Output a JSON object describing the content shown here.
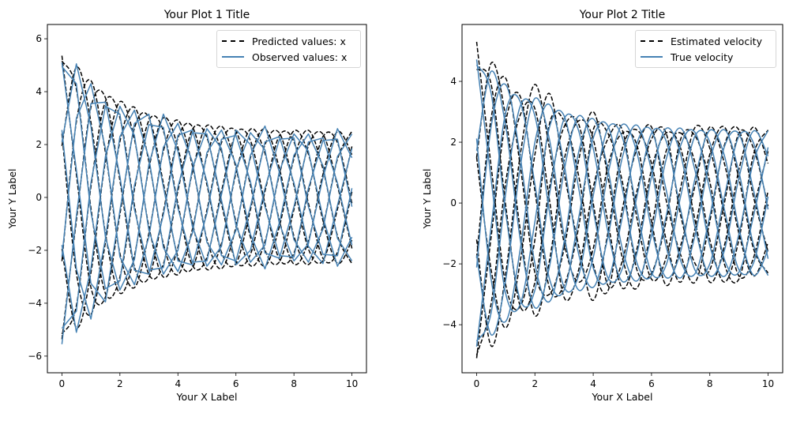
{
  "chart_data": [
    {
      "type": "line",
      "title": "Your Plot 1 Title",
      "xlabel": "Your X Label",
      "ylabel": "Your Y Label",
      "xlim": [
        -0.5,
        10.5
      ],
      "ylim": [
        -6.63,
        6.54
      ],
      "xticks": [
        0,
        2,
        4,
        6,
        8,
        10
      ],
      "yticks": [
        -6,
        -4,
        -2,
        0,
        2,
        4,
        6
      ],
      "grid": false,
      "legend": {
        "placement": "top-right",
        "entries": [
          "Predicted values: x",
          "Observed values: x"
        ]
      },
      "x": [
        0,
        0.5,
        1,
        1.5,
        2,
        2.5,
        3,
        3.5,
        4,
        4.5,
        5,
        5.5,
        6,
        6.5,
        7,
        7.5,
        8,
        8.5,
        9,
        9.5,
        10
      ],
      "series": [
        {
          "name": "Predicted values: x",
          "style": "dashed",
          "color": "#000000",
          "trajectories": [
            [
              5.36,
              0.87,
              -3.4,
              -3.77,
              -0.64,
              2.62,
              3.02,
              0.53,
              -2.24,
              -2.67,
              -0.48,
              2.07,
              2.5,
              0.46,
              -1.99,
              -2.43,
              -0.45,
              1.95,
              2.39,
              0.44,
              -1.93
            ],
            [
              2.41,
              -2.86,
              -4.42,
              -1.7,
              2.11,
              3.41,
              1.36,
              -1.76,
              -2.92,
              -1.2,
              1.58,
              2.69,
              1.13,
              -1.5,
              -2.59,
              -1.09,
              1.47,
              2.54,
              1.07,
              -1.45,
              -2.51
            ],
            [
              -1.95,
              -4.92,
              -2.85,
              1.37,
              3.62,
              2.2,
              -1.1,
              -3.01,
              -1.88,
              0.97,
              2.72,
              1.74,
              -0.91,
              -2.58,
              -1.67,
              0.88,
              2.52,
              1.64,
              -0.87,
              -2.49,
              -1.62
            ],
            [
              -5.16,
              -4.09,
              0.39,
              3.63,
              3.01,
              -0.3,
              -2.91,
              -2.51,
              0.25,
              2.57,
              2.26,
              -0.23,
              -2.41,
              -2.15,
              0.23,
              2.34,
              2.1,
              -0.22,
              -2.3,
              -2.07,
              0.22
            ],
            [
              -5.36,
              -0.87,
              3.4,
              3.77,
              0.64,
              -2.62,
              -3.02,
              -0.53,
              2.24,
              2.67,
              0.48,
              -2.07,
              -2.5,
              -0.46,
              1.99,
              2.43,
              0.45,
              -1.95,
              -2.39,
              -0.44,
              1.93
            ],
            [
              -2.41,
              2.86,
              4.42,
              1.7,
              -2.11,
              -3.41,
              -1.36,
              1.76,
              2.92,
              1.2,
              -1.58,
              -2.69,
              -1.13,
              1.5,
              2.59,
              1.09,
              -1.47,
              -2.54,
              -1.07,
              1.45,
              2.51
            ],
            [
              1.95,
              4.92,
              2.85,
              -1.37,
              -3.62,
              -2.2,
              1.1,
              3.01,
              1.88,
              -0.97,
              -2.72,
              -1.74,
              0.91,
              2.58,
              1.67,
              -0.88,
              -2.52,
              -1.64,
              0.87,
              2.49,
              1.62
            ],
            [
              5.16,
              4.09,
              -0.39,
              -3.63,
              -3.01,
              0.3,
              2.91,
              2.51,
              -0.25,
              -2.57,
              -2.26,
              0.23,
              2.41,
              2.15,
              -0.23,
              -2.34,
              -2.1,
              0.22,
              2.3,
              2.07,
              -0.22
            ]
          ]
        },
        {
          "name": "Observed values: x",
          "style": "solid",
          "color": "#4682b4",
          "trajectories": [
            [
              5.1,
              1.05,
              -3.25,
              -3.95,
              -0.5,
              2.8,
              3.15,
              0.4,
              -2.4,
              -2.55,
              -0.6,
              2.2,
              2.35,
              0.6,
              -2.1,
              -2.3,
              -0.35,
              2.1,
              2.25,
              0.55,
              -1.8
            ],
            [
              2.55,
              -2.7,
              -4.6,
              -1.55,
              2.3,
              3.3,
              1.5,
              -1.9,
              -2.8,
              -1.35,
              1.7,
              2.55,
              1.25,
              -1.4,
              -2.7,
              -0.95,
              1.6,
              2.4,
              1.2,
              -1.55,
              -2.4
            ],
            [
              -1.8,
              -5.1,
              -2.7,
              1.55,
              3.45,
              2.35,
              -1.25,
              -2.9,
              -2.0,
              1.1,
              2.6,
              1.85,
              -1.05,
              -2.45,
              -1.8,
              1.0,
              2.4,
              1.75,
              -0.75,
              -2.6,
              -1.5
            ],
            [
              -4.95,
              -4.3,
              0.55,
              3.45,
              3.15,
              -0.45,
              -2.75,
              -2.65,
              0.4,
              2.45,
              2.4,
              -0.1,
              -2.55,
              -2.0,
              0.35,
              2.2,
              2.25,
              -0.35,
              -2.15,
              -2.2,
              0.35
            ],
            [
              -5.55,
              -0.7,
              3.55,
              3.6,
              0.8,
              -2.75,
              -2.9,
              -0.65,
              2.35,
              2.55,
              0.6,
              -2.2,
              -2.4,
              -0.35,
              2.1,
              2.3,
              0.55,
              -1.85,
              -2.5,
              -0.3,
              1.85
            ],
            [
              -2.25,
              3.0,
              4.3,
              1.85,
              -2.25,
              -3.3,
              -1.5,
              1.9,
              2.8,
              1.35,
              -1.7,
              -2.55,
              -1.25,
              1.6,
              2.7,
              0.95,
              -1.6,
              -2.45,
              -1.2,
              1.55,
              2.4
            ],
            [
              2.1,
              5.05,
              2.7,
              -1.5,
              -3.5,
              -2.35,
              1.25,
              3.15,
              1.75,
              -1.1,
              -2.6,
              -1.85,
              1.05,
              2.45,
              1.8,
              -1.0,
              -2.4,
              -1.75,
              0.75,
              2.6,
              1.5
            ],
            [
              4.95,
              4.3,
              -0.55,
              -3.45,
              -3.15,
              0.45,
              2.75,
              2.65,
              -0.4,
              -2.45,
              -2.4,
              0.1,
              2.55,
              2.0,
              -0.35,
              -2.2,
              -2.25,
              0.35,
              2.15,
              2.2,
              -0.35
            ]
          ]
        }
      ]
    },
    {
      "type": "line",
      "title": "Your Plot 2 Title",
      "xlabel": "Your X Label",
      "ylabel": "Your Y Label",
      "xlim": [
        -0.5,
        10.5
      ],
      "ylim": [
        -5.58,
        5.87
      ],
      "xticks": [
        0,
        2,
        4,
        6,
        8,
        10
      ],
      "yticks": [
        -4,
        -2,
        0,
        2,
        4
      ],
      "grid": false,
      "legend": {
        "placement": "top-right",
        "entries": [
          "Estimated velocity",
          "True velocity"
        ]
      },
      "x": [
        0,
        0.5,
        1,
        1.5,
        2,
        2.5,
        3,
        3.5,
        4,
        4.5,
        5,
        5.5,
        6,
        6.5,
        7,
        7.5,
        8,
        8.5,
        9,
        9.5,
        10
      ],
      "series": [
        {
          "name": "Estimated velocity",
          "style": "dashed",
          "color": "#000000",
          "trajectories": [
            [
              5.3,
              1.2,
              -2.7,
              -3.4,
              -1.2,
              2.6,
              2.7,
              0.9,
              -2.0,
              -2.9,
              -0.2,
              1.8,
              2.5,
              0.1,
              -1.7,
              -2.6,
              -0.6,
              1.9,
              2.4,
              0.2,
              -1.6
            ],
            [
              1.5,
              -2.2,
              -4.1,
              -1.9,
              1.6,
              3.6,
              1.0,
              -1.4,
              -3.2,
              -1.0,
              1.8,
              2.4,
              1.3,
              -1.2,
              -2.6,
              -0.8,
              1.6,
              2.5,
              0.8,
              -1.5,
              -2.3
            ],
            [
              -1.2,
              -4.7,
              -2.3,
              1.6,
              3.9,
              1.8,
              -1.3,
              -2.6,
              -1.5,
              1.2,
              2.3,
              1.9,
              -0.6,
              -2.7,
              -1.4,
              0.6,
              2.5,
              1.3,
              -1.0,
              -2.4,
              -1.3
            ],
            [
              -5.0,
              -3.3,
              0.7,
              2.9,
              3.1,
              0.1,
              -3.1,
              -2.2,
              0.5,
              2.1,
              2.4,
              -0.5,
              -2.5,
              -1.8,
              0.5,
              2.5,
              1.8,
              -0.4,
              -2.4,
              -1.8,
              0.4
            ],
            [
              -5.1,
              -1.1,
              2.7,
              3.5,
              0.4,
              -2.8,
              -2.7,
              -0.8,
              2.4,
              2.3,
              0.7,
              -2.2,
              -2.3,
              -0.6,
              2.1,
              2.2,
              0.7,
              -2.0,
              -2.5,
              -0.2,
              1.7
            ],
            [
              -1.8,
              2.8,
              4.1,
              1.2,
              -2.3,
              -3.0,
              -1.5,
              1.4,
              3.0,
              0.9,
              -1.8,
              -2.8,
              -0.8,
              1.7,
              2.3,
              1.3,
              -1.2,
              -2.6,
              -1.2,
              1.6,
              2.4
            ],
            [
              1.5,
              4.6,
              2.8,
              -0.9,
              -3.7,
              -1.9,
              1.4,
              2.7,
              2.1,
              -0.6,
              -2.8,
              -1.5,
              1.1,
              2.3,
              1.8,
              -0.6,
              -2.6,
              -1.4,
              1.1,
              2.5,
              1.3
            ],
            [
              4.4,
              3.9,
              -0.1,
              -3.4,
              -2.6,
              0.5,
              2.5,
              2.6,
              0.0,
              -2.7,
              -1.9,
              0.4,
              2.1,
              2.3,
              -0.4,
              -2.0,
              -2.2,
              0.0,
              2.3,
              1.8,
              -0.1
            ]
          ]
        },
        {
          "name": "True velocity",
          "style": "solid",
          "color": "#4682b4",
          "trajectories": [
            [
              4.72,
              0.77,
              -2.99,
              -3.32,
              -0.61,
              2.49,
              2.87,
              0.5,
              -2.13,
              -2.54,
              -0.46,
              1.97,
              2.38,
              0.44,
              -1.89,
              -2.31,
              -0.43,
              1.85,
              2.27,
              0.42,
              -1.83
            ],
            [
              2.12,
              -2.52,
              -3.89,
              -1.5,
              2.0,
              3.24,
              1.29,
              -1.67,
              -2.77,
              -1.14,
              1.5,
              2.56,
              1.07,
              -1.43,
              -2.46,
              -1.04,
              1.4,
              2.41,
              1.02,
              -1.38,
              -2.38
            ],
            [
              -1.72,
              -4.33,
              -2.51,
              1.21,
              3.44,
              2.09,
              -1.05,
              -2.86,
              -1.79,
              0.92,
              2.58,
              1.65,
              -0.86,
              -2.45,
              -1.59,
              0.84,
              2.39,
              1.56,
              -0.83,
              -2.37,
              -1.54
            ],
            [
              -4.54,
              -3.6,
              0.34,
              3.19,
              2.86,
              -0.29,
              -2.76,
              -2.38,
              0.24,
              2.44,
              2.15,
              -0.22,
              -2.29,
              -2.04,
              0.22,
              2.22,
              2.0,
              -0.21,
              -2.19,
              -1.97,
              0.21
            ],
            [
              -4.72,
              -0.77,
              2.99,
              3.32,
              0.61,
              -2.49,
              -2.87,
              -0.5,
              2.13,
              2.54,
              0.46,
              -1.97,
              -2.38,
              -0.44,
              1.89,
              2.31,
              0.43,
              -1.85,
              -2.27,
              -0.42,
              1.83
            ],
            [
              -2.12,
              2.52,
              3.89,
              1.5,
              -2.0,
              -3.24,
              -1.29,
              1.67,
              2.77,
              1.14,
              -1.5,
              -2.56,
              -1.07,
              1.43,
              2.46,
              1.04,
              -1.4,
              -2.41,
              -1.02,
              1.38,
              2.38
            ],
            [
              1.72,
              4.33,
              2.51,
              -1.21,
              -3.44,
              -2.09,
              1.05,
              2.86,
              1.79,
              -0.92,
              -2.58,
              -1.65,
              0.86,
              2.45,
              1.59,
              -0.84,
              -2.39,
              -1.56,
              0.83,
              2.37,
              1.54
            ],
            [
              4.54,
              3.6,
              -0.34,
              -3.19,
              -2.86,
              0.29,
              2.76,
              2.38,
              -0.24,
              -2.44,
              -2.15,
              0.22,
              2.29,
              2.04,
              -0.22,
              -2.22,
              -2.0,
              0.21,
              2.19,
              1.97,
              -0.21
            ]
          ]
        }
      ]
    }
  ]
}
